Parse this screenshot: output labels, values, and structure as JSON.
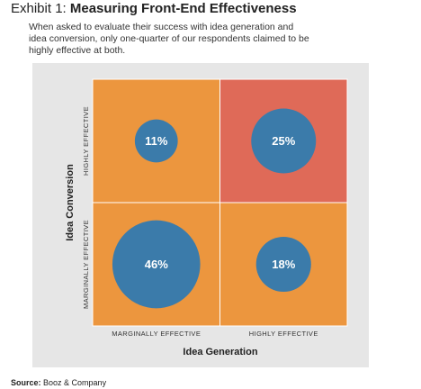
{
  "chart_data": {
    "type": "matrix-bubble",
    "title_prefix": "Exhibit 1:",
    "title": "Measuring Front-End Effectiveness",
    "subtitle_lines": [
      "When asked to evaluate their success with idea generation and",
      "idea conversion, only one-quarter of our respondents claimed to be",
      "highly effective at both."
    ],
    "x_label": "Idea Generation",
    "y_label": "Idea Conversion",
    "x_categories": [
      "MARGINALLY EFFECTIVE",
      "HIGHLY EFFECTIVE"
    ],
    "y_categories": [
      "MARGINALLY EFFECTIVE",
      "HIGHLY EFFECTIVE"
    ],
    "values": [
      [
        46,
        18
      ],
      [
        11,
        25
      ]
    ],
    "value_labels": [
      [
        "46%",
        "18%"
      ],
      [
        "11%",
        "25%"
      ]
    ],
    "cell_colors": [
      [
        "#ec963e",
        "#ec963e"
      ],
      [
        "#ec963e",
        "#df6a58"
      ]
    ],
    "bubble_color": "#3b7baa",
    "source_label": "Source:",
    "source": "Booz & Company"
  }
}
